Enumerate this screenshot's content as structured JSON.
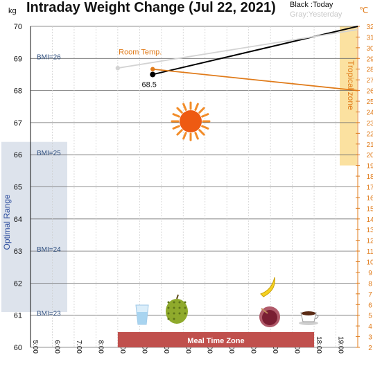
{
  "chart_data": {
    "type": "line",
    "title": "Intraday Weight Change (Jul 22, 2021)",
    "legend": {
      "today": "Black :Today",
      "yesterday": "Gray:Yesterday"
    },
    "y_left": {
      "unit": "kg",
      "min": 60,
      "max": 70,
      "ticks": [
        "70",
        "69",
        "68",
        "67",
        "66",
        "65",
        "64",
        "63",
        "62",
        "61",
        "60"
      ]
    },
    "y_right": {
      "unit": "℃",
      "min": 2,
      "max": 32,
      "ticks": [
        "32",
        "31",
        "30",
        "29",
        "28",
        "27",
        "26",
        "25",
        "24",
        "23",
        "22",
        "21",
        "20",
        "19",
        "18",
        "17",
        "16",
        "15",
        "14",
        "13",
        "12",
        "11",
        "10",
        "9",
        "8",
        "7",
        "6",
        "5",
        "4",
        "3",
        "2"
      ]
    },
    "x": {
      "min": 5,
      "max": 20,
      "ticks": [
        "5:00",
        "6:00",
        "7:00",
        "8:00",
        "9:00",
        "10:00",
        "11:00",
        "12:00",
        "13:00",
        "14:00",
        "15:00",
        "16:00",
        "17:00",
        "18:00",
        "19:00"
      ]
    },
    "bmi_lines": [
      {
        "label": "BMI=26",
        "kg": 69.0
      },
      {
        "label": "BMI=25",
        "kg": 66.0
      },
      {
        "label": "BMI=24",
        "kg": 63.0
      },
      {
        "label": "BMI=23",
        "kg": 61.0
      }
    ],
    "series": [
      {
        "name": "Today",
        "color": "#000000",
        "axis": "kg",
        "points": [
          [
            10.6,
            68.5
          ],
          [
            20.0,
            70.0
          ]
        ],
        "point_label": "68.5"
      },
      {
        "name": "Yesterday",
        "color": "#d3d3d3",
        "axis": "kg",
        "points": [
          [
            9.0,
            68.7
          ],
          [
            20.0,
            69.9
          ]
        ]
      },
      {
        "name": "Room Temp.",
        "color": "#e07b1a",
        "axis": "celsius",
        "points": [
          [
            10.6,
            28.0
          ],
          [
            20.0,
            26.0
          ]
        ]
      }
    ],
    "zones": {
      "optimal": {
        "label": "Optimal Range",
        "kg_range": [
          61.1,
          66.4
        ],
        "color": "#dde3ec"
      },
      "tropical": {
        "label": "Tropical zone",
        "celsius_range": [
          19,
          32
        ],
        "color": "#fbe1a0"
      },
      "meal_time": {
        "label": "Meal Time Zone",
        "x_range": [
          9.0,
          18.0
        ],
        "color": "#c0504d"
      }
    },
    "icons": [
      "sun-icon",
      "water-glass-icon",
      "durian-icon",
      "banana-icon",
      "fruit-bowl-icon",
      "coffee-cup-icon"
    ],
    "grid": true
  }
}
